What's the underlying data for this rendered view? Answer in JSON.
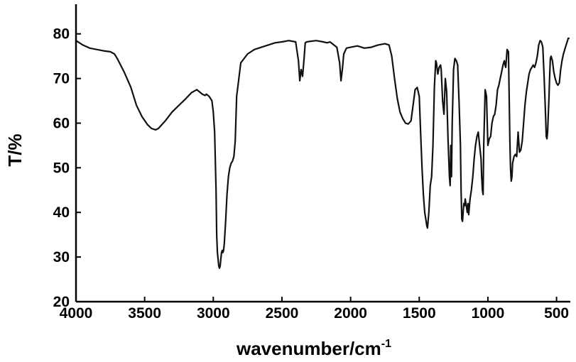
{
  "chart_data": {
    "type": "line",
    "title": "",
    "xlabel": "wavenumber/cm",
    "xlabel_superscript": "-1",
    "ylabel": "T/%",
    "xlim": [
      4000,
      410
    ],
    "ylim": [
      20,
      86
    ],
    "x_reversed": true,
    "grid": false,
    "legend": "none",
    "line_color": "#111111",
    "x_ticks": [
      {
        "value": 4000,
        "label": "4000"
      },
      {
        "value": 3500,
        "label": "3500"
      },
      {
        "value": 3000,
        "label": "3000"
      },
      {
        "value": 2500,
        "label": "2500"
      },
      {
        "value": 2000,
        "label": "2000"
      },
      {
        "value": 1500,
        "label": "1500"
      },
      {
        "value": 1000,
        "label": "1000"
      },
      {
        "value": 500,
        "label": "500"
      }
    ],
    "y_ticks": [
      {
        "value": 80,
        "label": "80"
      },
      {
        "value": 70,
        "label": "70"
      },
      {
        "value": 60,
        "label": "60"
      },
      {
        "value": 50,
        "label": "50"
      },
      {
        "value": 40,
        "label": "40"
      },
      {
        "value": 30,
        "label": "30"
      },
      {
        "value": 20,
        "label": "20"
      }
    ],
    "series": [
      {
        "x": [
          4000,
          3950,
          3900,
          3850,
          3800,
          3750,
          3720,
          3700,
          3650,
          3600,
          3560,
          3520,
          3480,
          3450,
          3420,
          3400,
          3350,
          3300,
          3250,
          3200,
          3160,
          3120,
          3100,
          3080,
          3060,
          3050,
          3030,
          3010,
          3000,
          2990,
          2980,
          2975,
          2970,
          2965,
          2960,
          2955,
          2950,
          2945,
          2940,
          2935,
          2930,
          2925,
          2920,
          2910,
          2900,
          2890,
          2880,
          2870,
          2860,
          2850,
          2840,
          2830,
          2800,
          2750,
          2700,
          2650,
          2600,
          2550,
          2500,
          2450,
          2400,
          2380,
          2370,
          2360,
          2350,
          2340,
          2330,
          2320,
          2300,
          2250,
          2200,
          2170,
          2150,
          2100,
          2080,
          2070,
          2060,
          2050,
          2030,
          2000,
          1950,
          1900,
          1850,
          1800,
          1750,
          1720,
          1700,
          1680,
          1660,
          1640,
          1620,
          1600,
          1580,
          1560,
          1545,
          1530,
          1515,
          1500,
          1490,
          1480,
          1470,
          1460,
          1450,
          1445,
          1440,
          1430,
          1420,
          1410,
          1400,
          1390,
          1380,
          1375,
          1365,
          1355,
          1345,
          1340,
          1330,
          1320,
          1310,
          1300,
          1290,
          1280,
          1275,
          1270,
          1265,
          1260,
          1250,
          1240,
          1230,
          1220,
          1210,
          1200,
          1195,
          1190,
          1185,
          1180,
          1175,
          1170,
          1165,
          1160,
          1155,
          1150,
          1145,
          1140,
          1130,
          1120,
          1110,
          1100,
          1090,
          1080,
          1070,
          1060,
          1050,
          1045,
          1040,
          1035,
          1030,
          1020,
          1010,
          1000,
          990,
          980,
          970,
          960,
          950,
          940,
          930,
          920,
          910,
          900,
          890,
          880,
          875,
          870,
          860,
          850,
          845,
          840,
          835,
          830,
          825,
          820,
          810,
          800,
          790,
          780,
          770,
          760,
          750,
          740,
          730,
          720,
          710,
          700,
          690,
          680,
          670,
          660,
          650,
          640,
          630,
          620,
          610,
          600,
          590,
          580,
          575,
          570,
          565,
          560,
          555,
          550,
          545,
          540,
          530,
          520,
          510,
          500,
          490,
          480,
          470,
          460,
          450,
          440,
          430,
          420,
          415,
          410
        ],
        "y": [
          78.5,
          77.5,
          76.8,
          76.5,
          76.2,
          76.0,
          75.5,
          74.5,
          71.5,
          68.0,
          64.0,
          61.5,
          59.7,
          58.8,
          58.5,
          58.8,
          60.5,
          62.5,
          64.0,
          65.5,
          66.8,
          67.5,
          67.0,
          66.5,
          66.2,
          66.5,
          66.0,
          65.0,
          62.5,
          58.0,
          45.0,
          35.0,
          31.0,
          29.5,
          28.0,
          27.5,
          28.0,
          29.5,
          31.0,
          31.5,
          31.0,
          31.5,
          33.0,
          38.0,
          44.0,
          48.0,
          50.0,
          51.0,
          51.5,
          52.5,
          56.0,
          66.0,
          73.5,
          75.5,
          76.5,
          77.0,
          77.5,
          78.0,
          78.2,
          78.5,
          78.2,
          74.0,
          69.5,
          72.0,
          70.5,
          74.0,
          78.0,
          78.2,
          78.3,
          78.5,
          78.2,
          78.0,
          78.2,
          77.0,
          73.5,
          69.5,
          72.0,
          75.5,
          76.8,
          77.0,
          77.3,
          76.8,
          77.0,
          77.5,
          77.8,
          77.5,
          75.0,
          70.0,
          65.5,
          62.5,
          61.0,
          60.0,
          59.8,
          60.5,
          64.0,
          67.5,
          68.0,
          66.0,
          58.0,
          50.0,
          44.0,
          40.0,
          38.0,
          37.0,
          36.5,
          40.0,
          46.0,
          48.0,
          55.0,
          68.0,
          74.0,
          73.5,
          71.0,
          72.5,
          73.0,
          72.0,
          65.0,
          62.0,
          70.0,
          67.0,
          56.0,
          48.0,
          46.0,
          55.0,
          48.0,
          60.0,
          72.0,
          74.5,
          74.0,
          73.0,
          65.0,
          55.0,
          45.0,
          38.5,
          38.0,
          40.0,
          42.0,
          41.5,
          43.0,
          42.0,
          41.0,
          40.0,
          42.0,
          39.5,
          43.0,
          45.0,
          48.0,
          52.0,
          55.0,
          57.0,
          58.0,
          55.0,
          52.0,
          48.0,
          45.0,
          44.0,
          55.0,
          67.5,
          66.0,
          55.0,
          56.5,
          57.0,
          60.0,
          61.5,
          62.0,
          64.0,
          67.5,
          68.5,
          70.0,
          71.5,
          73.0,
          74.0,
          73.0,
          72.5,
          76.5,
          76.0,
          66.0,
          56.0,
          50.0,
          47.0,
          48.0,
          51.0,
          52.5,
          53.0,
          52.5,
          58.0,
          53.5,
          54.0,
          56.0,
          60.0,
          64.0,
          67.0,
          69.0,
          71.0,
          72.0,
          72.5,
          73.0,
          72.5,
          73.5,
          75.0,
          77.5,
          78.5,
          78.2,
          77.0,
          70.0,
          62.0,
          57.0,
          56.5,
          58.0,
          62.0,
          66.0,
          70.5,
          74.5,
          75.0,
          74.0,
          71.5,
          70.0,
          69.0,
          68.5,
          69.0,
          72.0,
          74.0,
          75.5,
          76.5,
          77.5,
          78.5,
          79.0,
          79.0
        ]
      }
    ]
  }
}
